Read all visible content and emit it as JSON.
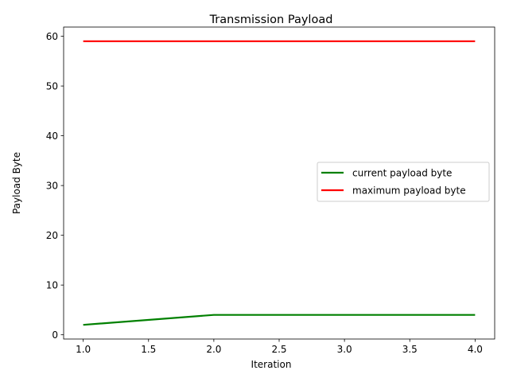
{
  "chart_data": {
    "type": "line",
    "title": "Transmission Payload",
    "xlabel": "Iteration",
    "ylabel": "Payload Byte",
    "x": [
      1,
      2,
      3,
      4
    ],
    "xlim": [
      0.85,
      4.15
    ],
    "ylim": [
      -0.85,
      61.85
    ],
    "xticks": [
      1.0,
      1.5,
      2.0,
      2.5,
      3.0,
      3.5,
      4.0
    ],
    "xtick_labels": [
      "1.0",
      "1.5",
      "2.0",
      "2.5",
      "3.0",
      "3.5",
      "4.0"
    ],
    "yticks": [
      0,
      10,
      20,
      30,
      40,
      50,
      60
    ],
    "ytick_labels": [
      "0",
      "10",
      "20",
      "30",
      "40",
      "50",
      "60"
    ],
    "grid": false,
    "legend_position": "center-right",
    "series": [
      {
        "name": "current payload byte",
        "color": "#008000",
        "values": [
          2,
          4,
          4,
          4
        ]
      },
      {
        "name": "maximum payload byte",
        "color": "#ff0000",
        "values": [
          59,
          59,
          59,
          59
        ]
      }
    ]
  }
}
